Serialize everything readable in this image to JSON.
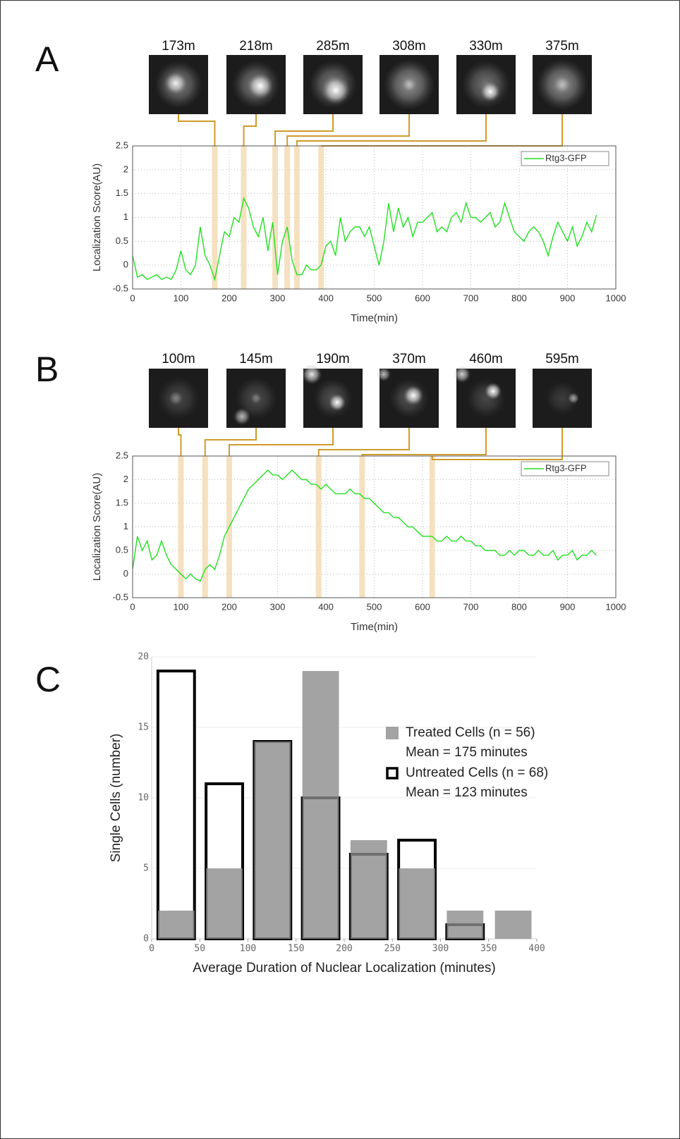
{
  "chart_data": [
    {
      "panel": "A",
      "type": "line",
      "frames": [
        {
          "label": "173m",
          "x": 170
        },
        {
          "label": "218m",
          "x": 230
        },
        {
          "label": "285m",
          "x": 295
        },
        {
          "label": "308m",
          "x": 320
        },
        {
          "label": "330m",
          "x": 340
        },
        {
          "label": "375m",
          "x": 390
        }
      ],
      "highlight_color": "#f3dcb5",
      "connector_color": "#cf9b2a",
      "x": [
        0,
        10,
        20,
        30,
        40,
        50,
        60,
        70,
        80,
        90,
        100,
        110,
        120,
        130,
        140,
        150,
        160,
        170,
        180,
        190,
        200,
        210,
        220,
        230,
        240,
        250,
        260,
        270,
        280,
        290,
        300,
        310,
        320,
        330,
        340,
        350,
        360,
        370,
        380,
        390,
        400,
        410,
        420,
        430,
        440,
        450,
        460,
        470,
        480,
        490,
        500,
        510,
        520,
        530,
        540,
        550,
        560,
        570,
        580,
        590,
        600,
        610,
        620,
        630,
        640,
        650,
        660,
        670,
        680,
        690,
        700,
        710,
        720,
        730,
        740,
        750,
        760,
        770,
        780,
        790,
        800,
        810,
        820,
        830,
        840,
        850,
        860,
        870,
        880,
        890,
        900,
        910,
        920,
        930,
        940,
        950,
        960
      ],
      "series": [
        {
          "name": "Rtg3-GFP",
          "color": "#22e022",
          "values": [
            0.2,
            -0.25,
            -0.2,
            -0.3,
            -0.25,
            -0.2,
            -0.3,
            -0.25,
            -0.3,
            -0.1,
            0.3,
            -0.1,
            -0.2,
            0.0,
            0.8,
            0.2,
            0.0,
            -0.3,
            0.2,
            0.7,
            0.6,
            1.0,
            0.9,
            1.4,
            1.2,
            0.8,
            0.6,
            1.0,
            0.3,
            0.9,
            -0.2,
            0.5,
            0.8,
            0.1,
            -0.2,
            -0.2,
            0.0,
            -0.1,
            -0.1,
            0.0,
            0.4,
            0.5,
            0.2,
            1.0,
            0.5,
            0.7,
            0.8,
            0.8,
            0.6,
            0.8,
            0.4,
            0.0,
            0.5,
            1.3,
            0.7,
            1.2,
            0.8,
            1.0,
            0.6,
            0.9,
            0.9,
            1.0,
            1.1,
            0.7,
            0.8,
            0.7,
            1.0,
            1.1,
            0.9,
            1.3,
            1.0,
            1.0,
            0.9,
            1.0,
            1.1,
            0.8,
            0.9,
            1.3,
            1.0,
            0.7,
            0.6,
            0.5,
            0.7,
            0.8,
            0.7,
            0.5,
            0.2,
            0.6,
            0.9,
            0.7,
            0.5,
            0.8,
            0.4,
            0.6,
            0.9,
            0.7,
            1.05
          ]
        }
      ],
      "xlabel": "Time(min)",
      "ylabel": "Localization Score(AU)",
      "xlim": [
        0,
        1000
      ],
      "xticks": [
        0,
        100,
        200,
        300,
        400,
        500,
        600,
        700,
        800,
        900,
        1000
      ],
      "ylim": [
        -0.5,
        2.5
      ],
      "yticks": [
        -0.5,
        0,
        0.5,
        1,
        1.5,
        2,
        2.5
      ],
      "grid": true,
      "legend": "upper right"
    },
    {
      "panel": "B",
      "type": "line",
      "frames": [
        {
          "label": "100m",
          "x": 100
        },
        {
          "label": "145m",
          "x": 150
        },
        {
          "label": "190m",
          "x": 200
        },
        {
          "label": "370m",
          "x": 385
        },
        {
          "label": "460m",
          "x": 475
        },
        {
          "label": "595m",
          "x": 620
        }
      ],
      "highlight_color": "#f3dcb5",
      "connector_color": "#cf9b2a",
      "x": [
        0,
        10,
        20,
        30,
        40,
        50,
        60,
        70,
        80,
        90,
        100,
        110,
        120,
        130,
        140,
        150,
        160,
        170,
        180,
        190,
        200,
        210,
        220,
        230,
        240,
        250,
        260,
        270,
        280,
        290,
        300,
        310,
        320,
        330,
        340,
        350,
        360,
        370,
        380,
        390,
        400,
        410,
        420,
        430,
        440,
        450,
        460,
        470,
        480,
        490,
        500,
        510,
        520,
        530,
        540,
        550,
        560,
        570,
        580,
        590,
        600,
        610,
        620,
        630,
        640,
        650,
        660,
        670,
        680,
        690,
        700,
        710,
        720,
        730,
        740,
        750,
        760,
        770,
        780,
        790,
        800,
        810,
        820,
        830,
        840,
        850,
        860,
        870,
        880,
        890,
        900,
        910,
        920,
        930,
        940,
        950,
        960
      ],
      "series": [
        {
          "name": "Rtg3-GFP",
          "color": "#22e022",
          "values": [
            0.1,
            0.8,
            0.5,
            0.7,
            0.3,
            0.4,
            0.7,
            0.4,
            0.2,
            0.1,
            0.0,
            -0.1,
            0.0,
            -0.1,
            -0.15,
            0.1,
            0.2,
            0.1,
            0.4,
            0.8,
            1.0,
            1.2,
            1.4,
            1.6,
            1.8,
            1.9,
            2.0,
            2.1,
            2.2,
            2.1,
            2.1,
            2.0,
            2.1,
            2.2,
            2.1,
            2.0,
            2.0,
            1.9,
            1.9,
            1.8,
            1.9,
            1.8,
            1.7,
            1.7,
            1.7,
            1.8,
            1.7,
            1.7,
            1.6,
            1.6,
            1.5,
            1.4,
            1.3,
            1.3,
            1.2,
            1.2,
            1.1,
            1.0,
            1.0,
            0.9,
            0.8,
            0.8,
            0.8,
            0.7,
            0.7,
            0.8,
            0.7,
            0.7,
            0.8,
            0.7,
            0.7,
            0.6,
            0.6,
            0.5,
            0.5,
            0.5,
            0.4,
            0.4,
            0.5,
            0.4,
            0.5,
            0.5,
            0.4,
            0.4,
            0.5,
            0.4,
            0.4,
            0.5,
            0.3,
            0.4,
            0.4,
            0.5,
            0.3,
            0.4,
            0.4,
            0.5,
            0.4
          ]
        }
      ],
      "xlabel": "Time(min)",
      "ylabel": "Localization Score(AU)",
      "xlim": [
        0,
        1000
      ],
      "xticks": [
        0,
        100,
        200,
        300,
        400,
        500,
        600,
        700,
        800,
        900,
        1000
      ],
      "ylim": [
        -0.5,
        2.5
      ],
      "yticks": [
        -0.5,
        0,
        0.5,
        1,
        1.5,
        2,
        2.5
      ],
      "grid": true,
      "legend": "upper right"
    },
    {
      "panel": "C",
      "type": "histogram",
      "bins": [
        0,
        50,
        100,
        150,
        200,
        250,
        300,
        350,
        400
      ],
      "series": [
        {
          "name": "Treated Cells (n = 56)",
          "note": "Mean = 175 minutes",
          "color": "#8c8c8c",
          "style": "filled",
          "values": [
            2,
            5,
            14,
            19,
            7,
            5,
            2,
            2
          ]
        },
        {
          "name": "Untreated Cells (n = 68)",
          "note": "Mean = 123 minutes",
          "color": "#000000",
          "style": "outline",
          "values": [
            19,
            11,
            14,
            10,
            6,
            7,
            1,
            0
          ]
        }
      ],
      "xlabel": "Average Duration of Nuclear Localization (minutes)",
      "ylabel": "Single Cells (number)",
      "xlim": [
        0,
        400
      ],
      "xticks": [
        0,
        50,
        100,
        150,
        200,
        250,
        300,
        350,
        400
      ],
      "ylim": [
        0,
        20
      ],
      "yticks": [
        0,
        5,
        10,
        15,
        20
      ],
      "grid": true,
      "legend": "upper right"
    }
  ]
}
